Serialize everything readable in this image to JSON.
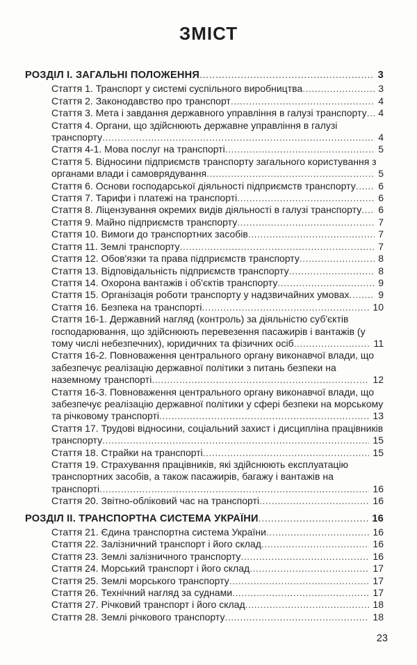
{
  "colors": {
    "paper": "#fdfdfc",
    "ink": "#1f1f1f",
    "leader_dots": "#555555"
  },
  "page": {
    "title": "ЗМІСТ",
    "footer_page_number": "23"
  },
  "toc": {
    "sections": [
      {
        "heading": "РОЗДІЛ І. ЗАГАЛЬНІ ПОЛОЖЕННЯ",
        "page": "3",
        "entries": [
          {
            "label": "Стаття 1. Транспорт у системі суспільного виробництва",
            "page": "3"
          },
          {
            "label": "Стаття 2. Законодавство про транспорт",
            "page": "4"
          },
          {
            "label": "Стаття 3. Мета і завдання державного управління в галузі транспорту",
            "page": "4"
          },
          {
            "label": "Стаття 4. Органи, що здійснюють державне управління в галузі транспорту",
            "page": "4"
          },
          {
            "label": "Стаття 4-1. Мова послуг на транспорті",
            "page": "5"
          },
          {
            "label": "Стаття 5. Відносини підприємств транспорту загального користування з органами влади і самоврядування",
            "page": "5"
          },
          {
            "label": "Стаття 6. Основи господарської діяльності підприємств транспорту",
            "page": "6"
          },
          {
            "label": "Стаття 7. Тарифи і платежі на транспорті",
            "page": "6"
          },
          {
            "label": "Стаття 8. Ліцензування окремих видів діяльності в галузі транспорту",
            "page": "6"
          },
          {
            "label": "Стаття 9. Майно підприємств транспорту",
            "page": "7"
          },
          {
            "label": "Стаття 10. Вимоги до транспортних засобів",
            "page": "7"
          },
          {
            "label": "Стаття 11. Землі транспорту",
            "page": "7"
          },
          {
            "label": "Стаття 12. Обов'язки та права підприємств транспорту",
            "page": "8"
          },
          {
            "label": "Стаття 13. Відповідальність підприємств транспорту",
            "page": "8"
          },
          {
            "label": "Стаття 14. Охорона вантажів і об'єктів транспорту",
            "page": "9"
          },
          {
            "label": "Стаття 15. Організація роботи транспорту у надзвичайних умовах",
            "page": "9"
          },
          {
            "label": "Стаття 16. Безпека на транспорті",
            "page": "10"
          },
          {
            "label": "Стаття 16-1. Державний нагляд (контроль) за діяльністю суб'єктів господарювання, що здійснюють перевезення пасажирів і вантажів (у тому числі небезпечних), юридичних та фізичних осіб",
            "page": "11"
          },
          {
            "label": "Стаття 16-2. Повноваження центрального органу виконавчої влади, що забезпечує реалізацію державної політики з питань безпеки на наземному транспорті",
            "page": "12"
          },
          {
            "label": "Стаття 16-3. Повноваження центрального органу виконавчої влади, що забезпечує реалізацію державної політики у сфері безпеки на морському та річковому транспорті",
            "page": "13"
          },
          {
            "label": "Стаття 17. Трудові відносини, соціальний захист і дисципліна працівників транспорту",
            "page": "15"
          },
          {
            "label": "Стаття 18. Страйки на транспорті",
            "page": "15"
          },
          {
            "label": "Стаття 19. Страхування працівників, які здійснюють експлуатацію транспортних засобів, а також пасажирів, багажу і вантажів на транспорті",
            "page": "16"
          },
          {
            "label": "Стаття 20. Звітно-обліковий час на транспорті",
            "page": "16"
          }
        ]
      },
      {
        "heading": "РОЗДІЛ ІІ. ТРАНСПОРТНА СИСТЕМА УКРАЇНИ",
        "page": "16",
        "entries": [
          {
            "label": "Стаття 21. Єдина транспортна система України",
            "page": "16"
          },
          {
            "label": "Стаття 22. Залізничний транспорт і його склад",
            "page": "16"
          },
          {
            "label": "Стаття 23. Землі залізничного транспорту",
            "page": "16"
          },
          {
            "label": "Стаття 24. Морський транспорт і його склад",
            "page": "17"
          },
          {
            "label": "Стаття 25. Землі морського транспорту",
            "page": "17"
          },
          {
            "label": "Стаття 26. Технічний нагляд за суднами",
            "page": "17"
          },
          {
            "label": "Стаття 27. Річковий транспорт і його склад",
            "page": "18"
          },
          {
            "label": "Стаття 28. Землі річкового транспорту",
            "page": "18"
          }
        ]
      }
    ]
  }
}
